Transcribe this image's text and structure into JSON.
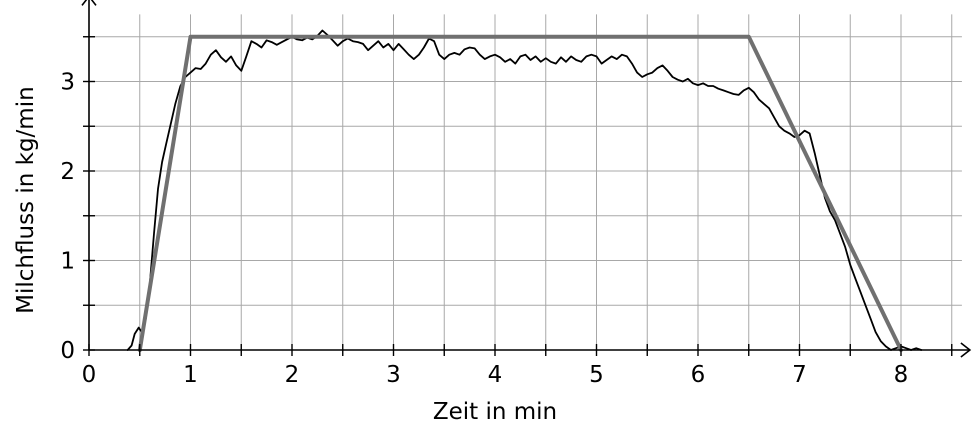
{
  "chart_data": {
    "type": "line",
    "title": "",
    "xlabel": "Zeit in min",
    "ylabel": "Milchfluss in kg/min",
    "xlim": [
      0,
      8.6
    ],
    "ylim": [
      0,
      3.75
    ],
    "x_ticks": [
      0,
      1,
      2,
      3,
      4,
      5,
      6,
      7,
      8
    ],
    "y_ticks": [
      0,
      1,
      2,
      3
    ],
    "grid": true,
    "legend": "none",
    "series": [
      {
        "style": "thin-black",
        "color": "#000000",
        "points": [
          [
            0.38,
            0.0
          ],
          [
            0.42,
            0.05
          ],
          [
            0.45,
            0.18
          ],
          [
            0.49,
            0.25
          ],
          [
            0.52,
            0.2
          ],
          [
            0.56,
            0.35
          ],
          [
            0.6,
            0.75
          ],
          [
            0.64,
            1.3
          ],
          [
            0.68,
            1.8
          ],
          [
            0.72,
            2.1
          ],
          [
            0.76,
            2.3
          ],
          [
            0.8,
            2.5
          ],
          [
            0.85,
            2.75
          ],
          [
            0.9,
            2.95
          ],
          [
            0.95,
            3.05
          ],
          [
            1.0,
            3.1
          ],
          [
            1.05,
            3.15
          ],
          [
            1.1,
            3.14
          ],
          [
            1.15,
            3.2
          ],
          [
            1.2,
            3.3
          ],
          [
            1.25,
            3.35
          ],
          [
            1.3,
            3.27
          ],
          [
            1.35,
            3.22
          ],
          [
            1.4,
            3.28
          ],
          [
            1.45,
            3.18
          ],
          [
            1.5,
            3.12
          ],
          [
            1.55,
            3.28
          ],
          [
            1.6,
            3.45
          ],
          [
            1.65,
            3.42
          ],
          [
            1.7,
            3.38
          ],
          [
            1.75,
            3.46
          ],
          [
            1.8,
            3.44
          ],
          [
            1.85,
            3.41
          ],
          [
            1.9,
            3.44
          ],
          [
            1.95,
            3.47
          ],
          [
            2.0,
            3.5
          ],
          [
            2.05,
            3.47
          ],
          [
            2.1,
            3.46
          ],
          [
            2.15,
            3.49
          ],
          [
            2.2,
            3.47
          ],
          [
            2.25,
            3.51
          ],
          [
            2.3,
            3.57
          ],
          [
            2.35,
            3.52
          ],
          [
            2.4,
            3.46
          ],
          [
            2.45,
            3.4
          ],
          [
            2.5,
            3.45
          ],
          [
            2.55,
            3.48
          ],
          [
            2.6,
            3.45
          ],
          [
            2.65,
            3.44
          ],
          [
            2.7,
            3.42
          ],
          [
            2.75,
            3.35
          ],
          [
            2.8,
            3.4
          ],
          [
            2.85,
            3.45
          ],
          [
            2.9,
            3.38
          ],
          [
            2.95,
            3.42
          ],
          [
            3.0,
            3.35
          ],
          [
            3.05,
            3.42
          ],
          [
            3.1,
            3.36
          ],
          [
            3.15,
            3.3
          ],
          [
            3.2,
            3.25
          ],
          [
            3.25,
            3.3
          ],
          [
            3.3,
            3.38
          ],
          [
            3.35,
            3.48
          ],
          [
            3.4,
            3.45
          ],
          [
            3.45,
            3.3
          ],
          [
            3.5,
            3.25
          ],
          [
            3.55,
            3.3
          ],
          [
            3.6,
            3.32
          ],
          [
            3.65,
            3.3
          ],
          [
            3.7,
            3.36
          ],
          [
            3.75,
            3.38
          ],
          [
            3.8,
            3.37
          ],
          [
            3.85,
            3.3
          ],
          [
            3.9,
            3.25
          ],
          [
            3.95,
            3.28
          ],
          [
            4.0,
            3.3
          ],
          [
            4.05,
            3.27
          ],
          [
            4.1,
            3.22
          ],
          [
            4.15,
            3.25
          ],
          [
            4.2,
            3.2
          ],
          [
            4.25,
            3.28
          ],
          [
            4.3,
            3.3
          ],
          [
            4.35,
            3.24
          ],
          [
            4.4,
            3.28
          ],
          [
            4.45,
            3.22
          ],
          [
            4.5,
            3.26
          ],
          [
            4.55,
            3.22
          ],
          [
            4.6,
            3.2
          ],
          [
            4.65,
            3.27
          ],
          [
            4.7,
            3.22
          ],
          [
            4.75,
            3.28
          ],
          [
            4.8,
            3.24
          ],
          [
            4.85,
            3.22
          ],
          [
            4.9,
            3.28
          ],
          [
            4.95,
            3.3
          ],
          [
            5.0,
            3.28
          ],
          [
            5.05,
            3.2
          ],
          [
            5.1,
            3.24
          ],
          [
            5.15,
            3.28
          ],
          [
            5.2,
            3.25
          ],
          [
            5.25,
            3.3
          ],
          [
            5.3,
            3.28
          ],
          [
            5.35,
            3.2
          ],
          [
            5.4,
            3.1
          ],
          [
            5.45,
            3.05
          ],
          [
            5.5,
            3.08
          ],
          [
            5.55,
            3.1
          ],
          [
            5.6,
            3.15
          ],
          [
            5.65,
            3.18
          ],
          [
            5.7,
            3.12
          ],
          [
            5.75,
            3.05
          ],
          [
            5.8,
            3.02
          ],
          [
            5.85,
            3.0
          ],
          [
            5.9,
            3.03
          ],
          [
            5.95,
            2.98
          ],
          [
            6.0,
            2.96
          ],
          [
            6.05,
            2.98
          ],
          [
            6.1,
            2.95
          ],
          [
            6.15,
            2.95
          ],
          [
            6.2,
            2.92
          ],
          [
            6.25,
            2.9
          ],
          [
            6.3,
            2.88
          ],
          [
            6.35,
            2.86
          ],
          [
            6.4,
            2.85
          ],
          [
            6.45,
            2.9
          ],
          [
            6.5,
            2.93
          ],
          [
            6.55,
            2.88
          ],
          [
            6.6,
            2.8
          ],
          [
            6.65,
            2.75
          ],
          [
            6.7,
            2.7
          ],
          [
            6.75,
            2.6
          ],
          [
            6.8,
            2.5
          ],
          [
            6.85,
            2.45
          ],
          [
            6.9,
            2.42
          ],
          [
            6.95,
            2.38
          ],
          [
            7.0,
            2.4
          ],
          [
            7.05,
            2.45
          ],
          [
            7.1,
            2.42
          ],
          [
            7.15,
            2.2
          ],
          [
            7.2,
            1.95
          ],
          [
            7.25,
            1.7
          ],
          [
            7.3,
            1.55
          ],
          [
            7.35,
            1.45
          ],
          [
            7.4,
            1.3
          ],
          [
            7.45,
            1.15
          ],
          [
            7.5,
            0.95
          ],
          [
            7.55,
            0.8
          ],
          [
            7.6,
            0.65
          ],
          [
            7.65,
            0.5
          ],
          [
            7.7,
            0.35
          ],
          [
            7.75,
            0.2
          ],
          [
            7.8,
            0.1
          ],
          [
            7.85,
            0.04
          ],
          [
            7.9,
            0.0
          ],
          [
            7.95,
            0.02
          ],
          [
            8.0,
            0.04
          ],
          [
            8.05,
            0.02
          ],
          [
            8.1,
            0.0
          ],
          [
            8.15,
            0.02
          ],
          [
            8.2,
            0.0
          ]
        ]
      },
      {
        "style": "thick-gray",
        "color": "#707070",
        "points": [
          [
            0.5,
            0.0
          ],
          [
            1.0,
            3.5
          ],
          [
            6.5,
            3.5
          ],
          [
            8.0,
            0.0
          ]
        ]
      }
    ]
  }
}
